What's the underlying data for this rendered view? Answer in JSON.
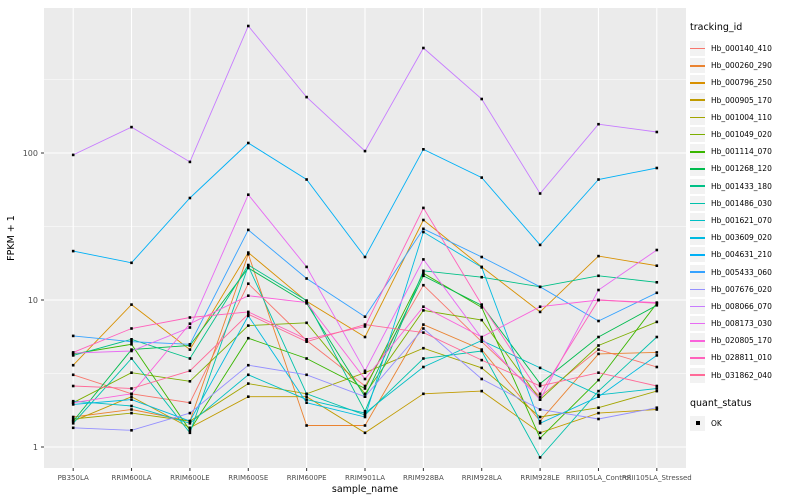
{
  "figure": {
    "background": "#FFFFFF",
    "panel_background": "#EBEBEB",
    "grid_color": "#FFFFFF",
    "tick_text_color": "#4D4D4D",
    "point_color": "#000000",
    "legend_key_background": "#F2F2F2"
  },
  "chart_data": {
    "type": "line",
    "title": "",
    "xlabel": "sample_name",
    "ylabel": "FPKM + 1",
    "y_scale": "log10",
    "y_ticks": [
      1,
      10,
      100
    ],
    "y_tick_labels": [
      "1",
      "10",
      "100"
    ],
    "y_minor_ticks": [
      3.1623,
      31.623,
      316.23
    ],
    "ylim": [
      0.72,
      950
    ],
    "grid": true,
    "legend_position": "right",
    "legend_title": "tracking_id",
    "categories": [
      "PB350LA",
      "RRIM600LA",
      "RRIM600LE",
      "RRIM600SE",
      "RRIM600PE",
      "RRIM901LA",
      "RRIM928BA",
      "RRIM928LA",
      "RRIM928LE",
      "RRII105LA_Control",
      "RRII105LA_Stressed"
    ],
    "series": [
      {
        "name": "Hb_000140_410",
        "color": "#F8766D",
        "values": [
          3.1,
          2.3,
          2.0,
          12.9,
          5.3,
          2.6,
          12.6,
          5.2,
          2.2,
          4.6,
          3.5
        ]
      },
      {
        "name": "Hb_000260_290",
        "color": "#EA8331",
        "values": [
          1.6,
          1.8,
          1.5,
          20.5,
          1.4,
          1.4,
          6.8,
          4.6,
          1.5,
          4.3,
          4.4
        ]
      },
      {
        "name": "Hb_000796_250",
        "color": "#D89000",
        "values": [
          3.6,
          9.3,
          4.6,
          21.0,
          9.8,
          5.6,
          35.0,
          16.8,
          8.3,
          19.9,
          17.1
        ]
      },
      {
        "name": "Hb_000905_170",
        "color": "#C09B00",
        "values": [
          1.5,
          2.2,
          1.35,
          2.2,
          2.2,
          1.25,
          2.3,
          2.4,
          1.25,
          1.7,
          1.8
        ]
      },
      {
        "name": "Hb_001004_110",
        "color": "#A3A500",
        "values": [
          1.55,
          1.7,
          1.5,
          2.7,
          2.3,
          3.2,
          4.7,
          3.45,
          1.6,
          1.85,
          2.4
        ]
      },
      {
        "name": "Hb_001049_020",
        "color": "#7CAE00",
        "values": [
          2.0,
          3.2,
          2.8,
          6.7,
          7.0,
          2.3,
          8.5,
          7.3,
          2.1,
          4.9,
          7.1
        ]
      },
      {
        "name": "Hb_001114_070",
        "color": "#39B600",
        "values": [
          4.3,
          5.0,
          1.3,
          5.5,
          4.0,
          2.5,
          15.2,
          8.9,
          1.15,
          2.85,
          9.5
        ]
      },
      {
        "name": "Hb_001268_120",
        "color": "#00BB4E",
        "values": [
          1.5,
          4.6,
          4.9,
          16.5,
          9.5,
          2.2,
          14.6,
          9.2,
          2.7,
          5.6,
          9.2
        ]
      },
      {
        "name": "Hb_001433_180",
        "color": "#00C087",
        "values": [
          4.2,
          5.4,
          4.0,
          17.3,
          9.9,
          1.75,
          15.8,
          14.3,
          12.3,
          14.6,
          13.2
        ]
      },
      {
        "name": "Hb_001486_030",
        "color": "#00C1AB",
        "values": [
          1.45,
          4.0,
          1.25,
          17.0,
          2.3,
          1.65,
          4.0,
          4.5,
          0.85,
          2.4,
          5.6
        ]
      },
      {
        "name": "Hb_001621_070",
        "color": "#00BFC4",
        "values": [
          2.05,
          1.9,
          1.45,
          3.1,
          2.1,
          1.7,
          3.5,
          5.3,
          3.45,
          2.26,
          2.5
        ]
      },
      {
        "name": "Hb_003609_020",
        "color": "#00BAE0",
        "values": [
          1.95,
          2.1,
          1.5,
          7.8,
          2.0,
          1.6,
          29.0,
          16.7,
          1.45,
          2.2,
          4.2
        ]
      },
      {
        "name": "Hb_004631_210",
        "color": "#00B0F6",
        "values": [
          21.5,
          17.9,
          49.4,
          117.0,
          66.0,
          19.6,
          106.0,
          68.0,
          23.7,
          66.0,
          79.0
        ]
      },
      {
        "name": "Hb_005433_060",
        "color": "#35A2FF",
        "values": [
          5.7,
          5.2,
          5.0,
          30.0,
          14.0,
          7.7,
          30.5,
          19.6,
          12.3,
          7.2,
          11.2
        ]
      },
      {
        "name": "Hb_007676_020",
        "color": "#9590FF",
        "values": [
          1.35,
          1.3,
          1.7,
          3.6,
          3.1,
          2.2,
          6.4,
          2.9,
          1.8,
          1.55,
          1.85
        ]
      },
      {
        "name": "Hb_008066_070",
        "color": "#C77CFF",
        "values": [
          97.0,
          150.0,
          87.0,
          731.0,
          240.0,
          103.0,
          518.0,
          233.0,
          53.0,
          157.0,
          139.0
        ]
      },
      {
        "name": "Hb_008173_030",
        "color": "#E76BF3",
        "values": [
          4.35,
          4.5,
          6.5,
          52.0,
          16.8,
          3.3,
          18.9,
          5.5,
          2.1,
          11.7,
          21.9
        ]
      },
      {
        "name": "Hb_020805_170",
        "color": "#FA62DB",
        "values": [
          2.0,
          2.3,
          6.9,
          10.7,
          9.6,
          2.9,
          9.0,
          5.6,
          9.0,
          10.0,
          9.6
        ]
      },
      {
        "name": "Hb_028811_010",
        "color": "#FF62BC",
        "values": [
          4.4,
          6.4,
          7.6,
          8.3,
          5.4,
          6.6,
          42.3,
          9.3,
          2.3,
          10.0,
          9.5
        ]
      },
      {
        "name": "Hb_031862_040",
        "color": "#FF6A98",
        "values": [
          2.6,
          2.5,
          3.3,
          8.0,
          5.2,
          6.8,
          6.0,
          3.9,
          2.6,
          3.2,
          2.6
        ]
      }
    ],
    "legend2": {
      "title": "quant_status",
      "items": [
        {
          "label": "OK",
          "marker": "square",
          "color": "#000000"
        }
      ]
    }
  }
}
